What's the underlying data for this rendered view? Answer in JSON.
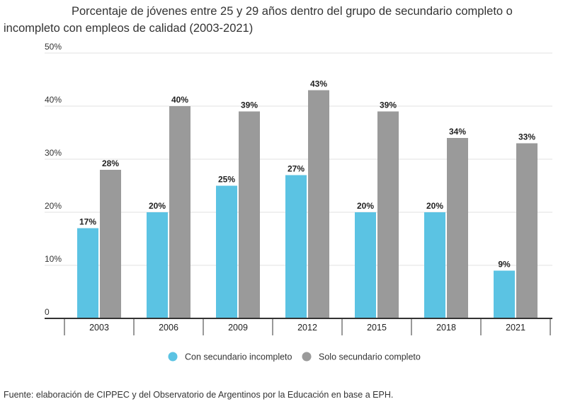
{
  "title_line1": "Porcentaje de jóvenes entre 25 y 29 años dentro del grupo de secundario completo o",
  "title_line2": "incompleto con empleos de calidad (2003-2021)",
  "source": "Fuente: elaboración de CIPPEC y del Observatorio de Argentinos por la Educación en base a EPH.",
  "colors": {
    "incompleto": "#5bc3e3",
    "completo": "#9a9a9a",
    "grid": "#e0e0e0",
    "axis": "#333333"
  },
  "chart_data": {
    "type": "bar",
    "title": "Porcentaje de jóvenes entre 25 y 29 años dentro del grupo de secundario completo o incompleto con empleos de calidad (2003-2021)",
    "categories": [
      "2003",
      "2006",
      "2009",
      "2012",
      "2015",
      "2018",
      "2021"
    ],
    "series": [
      {
        "name": "Con secundario incompleto",
        "values": [
          17,
          20,
          25,
          27,
          20,
          20,
          9
        ],
        "labels": [
          "17%",
          "20%",
          "25%",
          "27%",
          "20%",
          "20%",
          "9%"
        ]
      },
      {
        "name": "Solo secundario completo",
        "values": [
          28,
          40,
          39,
          43,
          39,
          34,
          33
        ],
        "labels": [
          "28%",
          "40%",
          "39%",
          "43%",
          "39%",
          "34%",
          "33%"
        ]
      }
    ],
    "yticks": [
      0,
      10,
      20,
      30,
      40,
      50
    ],
    "ytick_labels": [
      "0",
      "10%",
      "20%",
      "30%",
      "40%",
      "50%"
    ],
    "ylim": [
      0,
      50
    ],
    "xlabel": "",
    "ylabel": "",
    "grid": true,
    "legend": "bottom-center"
  }
}
